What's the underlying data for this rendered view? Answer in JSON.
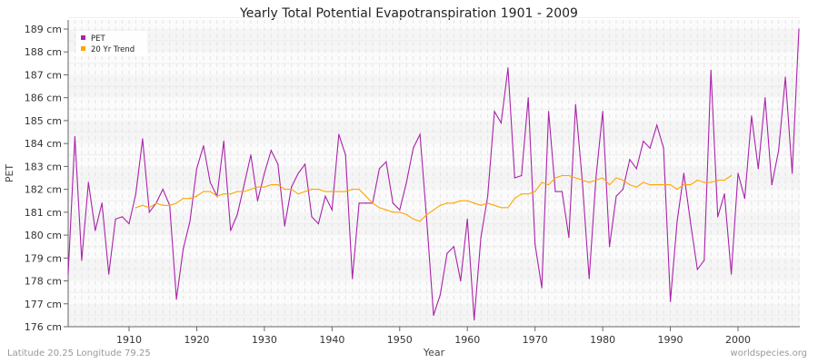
{
  "chart_data": {
    "type": "line",
    "title": "Yearly Total Potential Evapotranspiration 1901 - 2009",
    "xlabel": "Year",
    "ylabel": "PET",
    "y_unit": "cm",
    "xlim": [
      1901,
      2009
    ],
    "ylim": [
      176,
      189
    ],
    "x_ticks": [
      1910,
      1920,
      1930,
      1940,
      1950,
      1960,
      1970,
      1980,
      1990,
      2000
    ],
    "y_ticks": [
      "176 cm",
      "177 cm",
      "178 cm",
      "179 cm",
      "180 cm",
      "181 cm",
      "182 cm",
      "183 cm",
      "184 cm",
      "185 cm",
      "186 cm",
      "187 cm",
      "188 cm",
      "189 cm"
    ],
    "grid": true,
    "legend_position": "top-left",
    "series": [
      {
        "name": "PET",
        "color": "#aa22aa",
        "start_year": 1901,
        "values": [
          178.3,
          184.3,
          178.9,
          182.3,
          180.2,
          181.4,
          178.3,
          180.7,
          180.8,
          180.5,
          181.8,
          184.2,
          181.0,
          181.4,
          182.0,
          181.3,
          177.2,
          179.4,
          180.6,
          182.9,
          183.9,
          182.3,
          181.7,
          184.1,
          180.2,
          180.9,
          182.2,
          183.5,
          181.5,
          182.7,
          183.7,
          183.1,
          180.4,
          182.1,
          182.7,
          183.1,
          180.8,
          180.5,
          181.7,
          181.1,
          184.4,
          183.5,
          178.1,
          181.4,
          181.4,
          181.4,
          182.9,
          183.2,
          181.4,
          181.1,
          182.3,
          183.8,
          184.4,
          180.6,
          176.5,
          177.4,
          179.2,
          179.5,
          178.0,
          180.7,
          176.3,
          179.9,
          181.7,
          185.4,
          184.9,
          187.3,
          182.5,
          182.6,
          186.0,
          179.6,
          177.7,
          185.4,
          181.9,
          181.9,
          179.9,
          185.7,
          182.3,
          178.1,
          182.5,
          185.4,
          179.5,
          181.7,
          182.0,
          183.3,
          182.9,
          184.1,
          183.8,
          184.8,
          183.8,
          177.1,
          180.6,
          182.7,
          180.5,
          178.5,
          178.9,
          187.2,
          180.8,
          181.8,
          178.3,
          182.7,
          181.6,
          185.2,
          182.9,
          186.0,
          182.2,
          183.7,
          186.9,
          182.7,
          189.0
        ]
      },
      {
        "name": "20 Yr Trend",
        "color": "#ffa500",
        "start_year": 1911,
        "values": [
          181.2,
          181.3,
          181.2,
          181.4,
          181.3,
          181.3,
          181.4,
          181.6,
          181.6,
          181.7,
          181.9,
          181.9,
          181.7,
          181.8,
          181.8,
          181.9,
          181.9,
          182.0,
          182.1,
          182.1,
          182.2,
          182.2,
          182.0,
          182.0,
          181.8,
          181.9,
          182.0,
          182.0,
          181.9,
          181.9,
          181.9,
          181.9,
          182.0,
          182.0,
          181.7,
          181.4,
          181.2,
          181.1,
          181.0,
          181.0,
          180.9,
          180.7,
          180.6,
          180.9,
          181.1,
          181.3,
          181.4,
          181.4,
          181.5,
          181.5,
          181.4,
          181.3,
          181.4,
          181.3,
          181.2,
          181.2,
          181.6,
          181.8,
          181.8,
          181.9,
          182.3,
          182.2,
          182.5,
          182.6,
          182.6,
          182.5,
          182.4,
          182.3,
          182.4,
          182.5,
          182.2,
          182.5,
          182.4,
          182.2,
          182.1,
          182.3,
          182.2,
          182.2,
          182.2,
          182.2,
          182.0,
          182.2,
          182.2,
          182.4,
          182.3,
          182.3,
          182.4,
          182.4,
          182.6
        ]
      }
    ]
  },
  "footer": {
    "location": "Latitude 20.25 Longitude 79.25",
    "source": "worldspecies.org"
  }
}
